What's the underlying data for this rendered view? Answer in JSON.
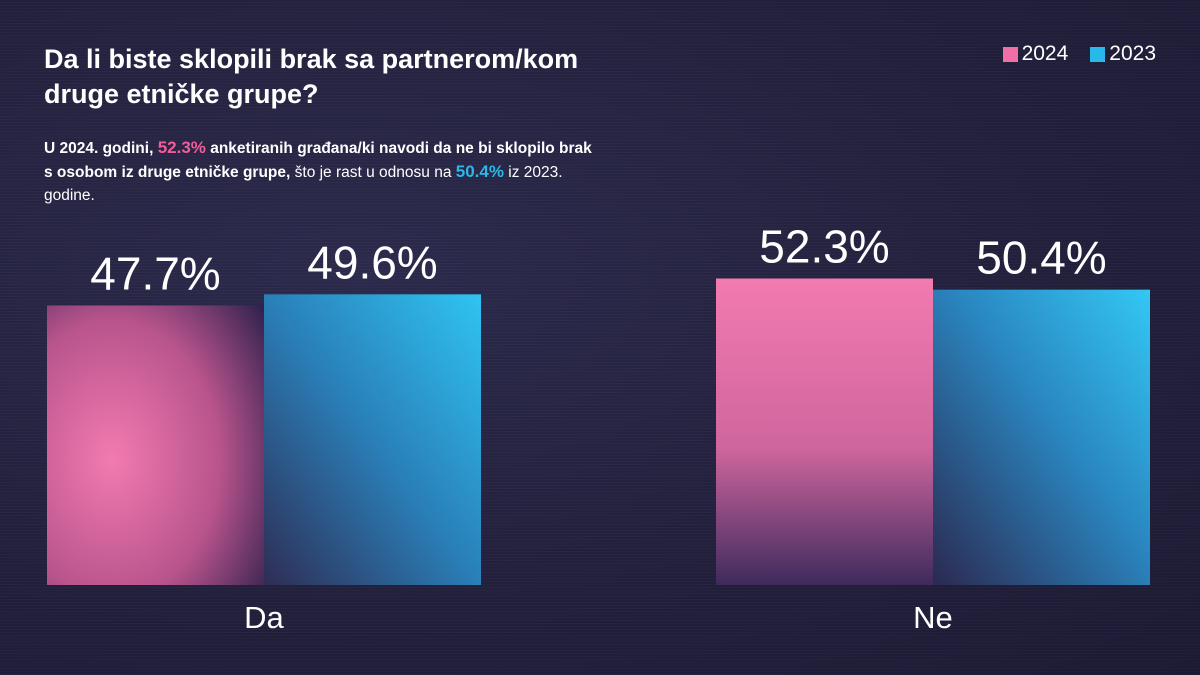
{
  "title": "Da li biste sklopili brak sa partnerom/kom druge etničke grupe?",
  "subtitle": {
    "part1": "U 2024. godini, ",
    "hl1": "52.3%",
    "part2": " anketiranih građana/ki navodi da ne bi sklopilo brak s osobom iz druge etničke grupe,",
    "part3": " što je rast u odnosu na ",
    "hl2": "50.4%",
    "part4": " iz 2023. godine."
  },
  "colors": {
    "series_2024": "#f06fa6",
    "series_2023": "#28b9eb",
    "highlight_2024": "#f25c9a",
    "highlight_2023": "#2bb8e8"
  },
  "chart_data": {
    "type": "bar",
    "categories": [
      "Da",
      "Ne"
    ],
    "series": [
      {
        "name": "2024",
        "values": [
          47.7,
          52.3
        ],
        "labels": [
          "47.7%",
          "52.3%"
        ]
      },
      {
        "name": "2023",
        "values": [
          49.6,
          50.4
        ],
        "labels": [
          "49.6%",
          "50.4%"
        ]
      }
    ],
    "ylim": [
      0,
      100
    ],
    "grid": false,
    "legend_position": "top-right"
  }
}
